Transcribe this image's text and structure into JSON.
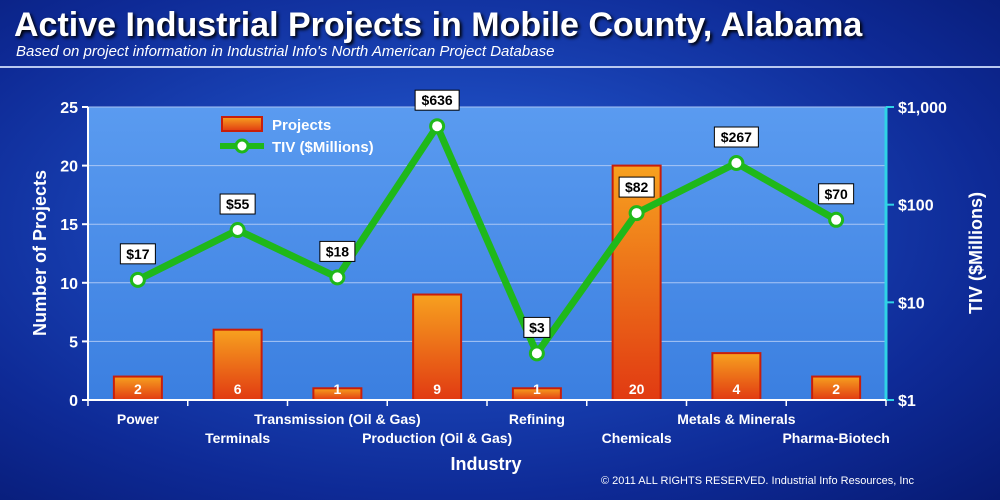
{
  "header": {
    "title": "Active Industrial Projects in Mobile County, Alabama",
    "subtitle": "Based on project information in Industrial Info's North American Project Database"
  },
  "footer": {
    "copyright": "© 2011 ALL RIGHTS RESERVED. Industrial Info Resources, Inc"
  },
  "colors": {
    "bar_top": "#f7a11f",
    "bar_bottom": "#e13a12",
    "bar_border": "#c81e0a",
    "line": "#1fb81a",
    "axis_right": "#2fd3e6",
    "axis_left": "#ffffff"
  },
  "chart_data": {
    "type": "bar+line",
    "title": "Active Industrial Projects in Mobile County, Alabama",
    "subtitle": "Based on project information in Industrial Info's North American Project Database",
    "categories": [
      "Power",
      "Terminals",
      "Transmission (Oil & Gas)",
      "Production (Oil & Gas)",
      "Refining",
      "Chemicals",
      "Metals & Minerals",
      "Pharma-Biotech"
    ],
    "series": [
      {
        "name": "Projects",
        "type": "bar",
        "axis": "left",
        "values": [
          2,
          6,
          1,
          9,
          1,
          20,
          4,
          2
        ],
        "labels": [
          "2",
          "6",
          "1",
          "9",
          "1",
          "20",
          "4",
          "2"
        ]
      },
      {
        "name": "TIV ($Millions)",
        "type": "line",
        "axis": "right",
        "values": [
          17,
          55,
          18,
          636,
          3,
          82,
          267,
          70
        ],
        "labels": [
          "$17",
          "$55",
          "$18",
          "$636",
          "$3",
          "$82",
          "$267",
          "$70"
        ]
      }
    ],
    "xlabel": "Industry",
    "ylabel": "Number of Projects",
    "y2label": "TIV ($Millions)",
    "ylim": [
      0,
      25
    ],
    "yticks": [
      "0",
      "5",
      "10",
      "15",
      "20",
      "25"
    ],
    "y2scale": "log",
    "y2lim": [
      1,
      1000
    ],
    "y2ticks": [
      "$1",
      "$10",
      "$100",
      "$1,000"
    ],
    "grid": "horizontal",
    "legend": "top-left"
  }
}
